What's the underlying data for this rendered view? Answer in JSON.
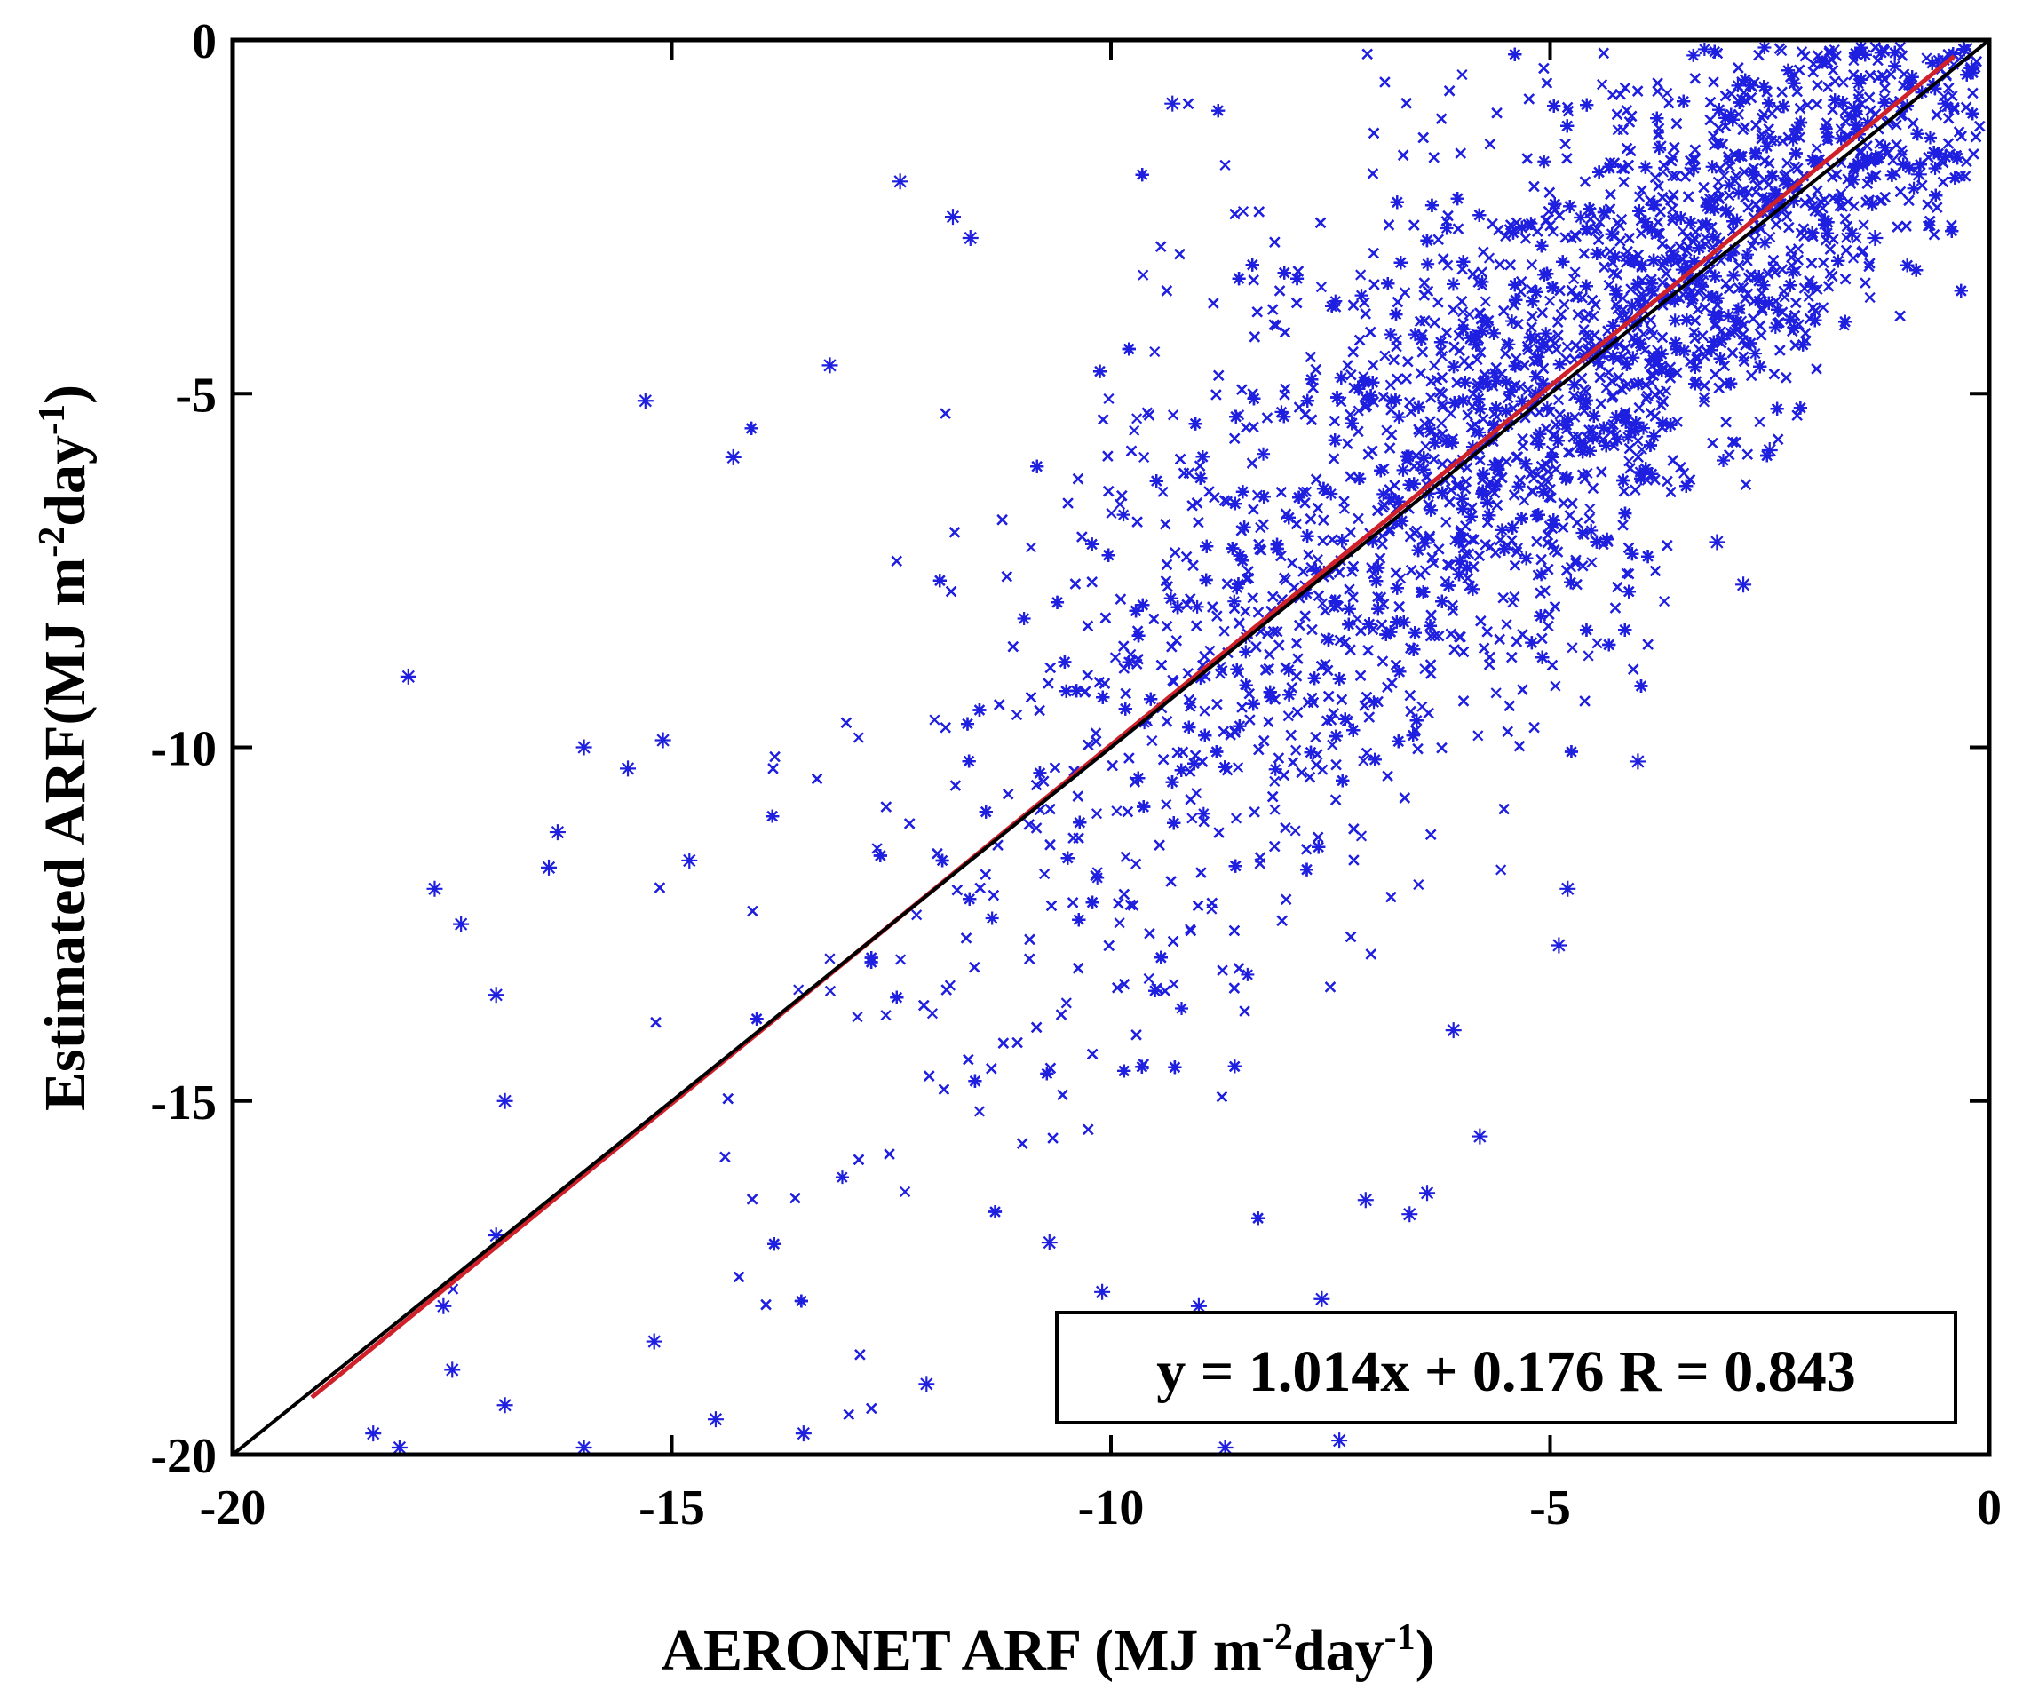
{
  "chart_data": {
    "type": "scatter",
    "title": "",
    "xlabel": {
      "main": "AERONET ARF (MJ m",
      "sup1": "-2",
      "mid": "day",
      "sup2": "-1",
      "end": ")"
    },
    "ylabel": {
      "main": "Estimated ARF(MJ m",
      "sup1": "-2",
      "mid": "day",
      "sup2": "-1",
      "end": ")"
    },
    "xlim": [
      -20,
      0
    ],
    "ylim": [
      -20,
      0
    ],
    "xticks": [
      -20,
      -15,
      -10,
      -5,
      0
    ],
    "yticks": [
      -20,
      -15,
      -10,
      -5,
      0
    ],
    "xtick_labels": [
      "-20",
      "-15",
      "-10",
      "-5",
      "0"
    ],
    "ytick_labels": [
      "-20",
      "-15",
      "-10",
      "-5",
      "0"
    ],
    "grid": false,
    "marker": "asterisk",
    "point_color": "#1f1fe0",
    "fit_line": {
      "slope": 1.014,
      "intercept": 0.176,
      "x_range": [
        -19.1,
        -0.4
      ],
      "color": "#d0202a"
    },
    "reference_line": {
      "slope": 1,
      "intercept": 0,
      "x_range": [
        -20,
        0
      ],
      "color": "#000000"
    },
    "annotation": "y = 1.014x + 0.176 R = 0.843",
    "density_model": {
      "n_points": 11000,
      "x_mean": -4.3,
      "x_std": 3.6,
      "noise_std": 1.9,
      "x_range": [
        -19.8,
        -0.1
      ],
      "y_range": [
        -19.9,
        -0.1
      ]
    },
    "points": [
      [
        -18.0,
        -9.0
      ],
      [
        -17.7,
        -12.0
      ],
      [
        -17.4,
        -12.5
      ],
      [
        -17.0,
        -13.5
      ],
      [
        -15.3,
        -5.1
      ],
      [
        -14.3,
        -5.9
      ],
      [
        -13.2,
        -4.6
      ],
      [
        -12.4,
        -2.0
      ],
      [
        -11.8,
        -2.5
      ],
      [
        -11.6,
        -2.8
      ],
      [
        -9.3,
        -0.9
      ],
      [
        -16.0,
        -10.0
      ],
      [
        -16.4,
        -11.7
      ],
      [
        -16.3,
        -11.2
      ],
      [
        -15.5,
        -10.3
      ],
      [
        -15.1,
        -9.9
      ],
      [
        -14.8,
        -11.6
      ],
      [
        -18.4,
        -19.7
      ],
      [
        -18.1,
        -19.9
      ],
      [
        -17.5,
        -18.8
      ],
      [
        -16.9,
        -19.3
      ],
      [
        -16.0,
        -19.9
      ],
      [
        -7.4,
        -19.8
      ],
      [
        -8.7,
        -19.9
      ],
      [
        -5.8,
        -15.5
      ],
      [
        -6.1,
        -14.0
      ],
      [
        -4.9,
        -12.8
      ],
      [
        -4.8,
        -12.0
      ],
      [
        -4.0,
        -10.2
      ],
      [
        -3.1,
        -7.1
      ],
      [
        -2.8,
        -7.7
      ],
      [
        -2.5,
        -5.8
      ],
      [
        -1.3,
        -2.8
      ],
      [
        -0.8,
        -1.9
      ],
      [
        -0.5,
        -0.9
      ],
      [
        -0.2,
        -0.4
      ],
      [
        -6.4,
        -16.3
      ],
      [
        -7.1,
        -16.4
      ],
      [
        -7.6,
        -17.8
      ],
      [
        -6.6,
        -16.6
      ],
      [
        -9.0,
        -17.9
      ],
      [
        -10.1,
        -17.7
      ],
      [
        -10.7,
        -17.0
      ],
      [
        -12.1,
        -19.0
      ],
      [
        -13.5,
        -19.7
      ],
      [
        -14.5,
        -19.5
      ],
      [
        -15.2,
        -18.4
      ],
      [
        -17.0,
        -16.9
      ],
      [
        -17.6,
        -17.9
      ],
      [
        -16.9,
        -15.0
      ]
    ]
  }
}
